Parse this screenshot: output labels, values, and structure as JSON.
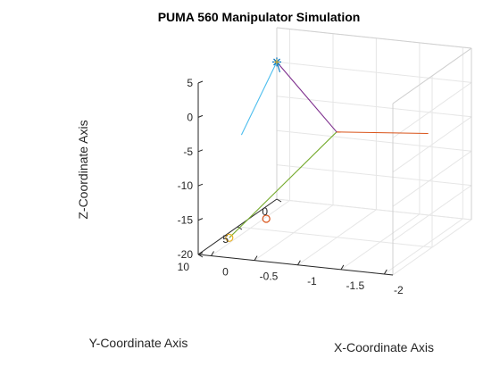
{
  "chart_data": {
    "type": "line3d",
    "title": "PUMA 560 Manipulator Simulation",
    "xlabel": "X-Coordinate Axis",
    "ylabel": "Y-Coordinate Axis",
    "zlabel": "Z-Coordinate Axis",
    "xlim": [
      -2.1,
      0.15
    ],
    "ylim": [
      0,
      10
    ],
    "zlim": [
      -20,
      5
    ],
    "x_ticks": [
      "-2",
      "-1.5",
      "-1",
      "-0.5",
      "0"
    ],
    "y_ticks": [
      "0",
      "5",
      "10"
    ],
    "z_ticks": [
      "5",
      "0",
      "-5",
      "-10",
      "-15",
      "-20"
    ],
    "grid": true,
    "series": [
      {
        "color": "#D95319",
        "points": [
          [
            -2.1,
            5.5,
            -3.0
          ],
          [
            -1.45,
            10,
            0
          ]
        ]
      },
      {
        "color": "#77AC30",
        "points": [
          [
            -1.45,
            10,
            0
          ],
          [
            -0.1,
            8.8,
            -18.2
          ]
        ]
      },
      {
        "color": "#7E2F8E",
        "points": [
          [
            -1.45,
            10,
            0
          ],
          [
            0.15,
            0,
            0
          ]
        ]
      },
      {
        "color": "#4DBEEE",
        "points": [
          [
            0.15,
            0,
            0
          ],
          [
            0.15,
            4.5,
            -7.0
          ]
        ]
      },
      {
        "color": "#0072BD",
        "points": [
          [
            0.05,
            0.7,
            -0.8
          ],
          [
            0.15,
            0,
            0
          ]
        ]
      }
    ],
    "markers": [
      {
        "shape": "circle",
        "color": "#EDB120",
        "point": [
          -0.1,
          8.8,
          -18.2
        ]
      },
      {
        "shape": "circle",
        "color": "#D95319",
        "point": [
          -0.2,
          5.2,
          -18.2
        ]
      },
      {
        "shape": "star",
        "color": "#0072BD",
        "point": [
          0.15,
          0,
          0
        ]
      },
      {
        "shape": "plus",
        "color": "#EDB120",
        "point": [
          0.15,
          0,
          0
        ]
      }
    ]
  }
}
